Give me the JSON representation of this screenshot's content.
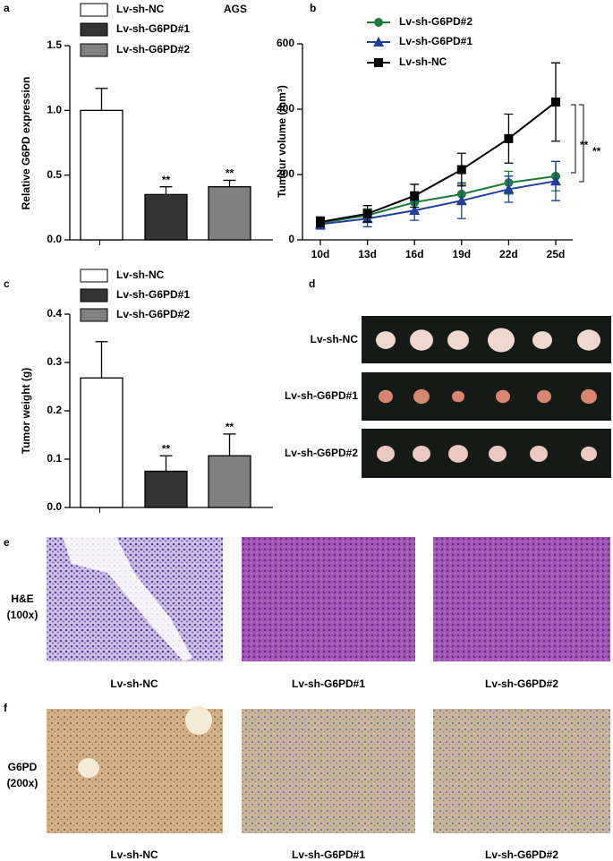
{
  "chart_data": [
    {
      "type": "bar",
      "panel": "a",
      "ylabel": "Relative G6PD expression",
      "note": "AGS",
      "categories": [
        null
      ],
      "ylim": [
        0,
        1.5
      ],
      "yticks": [
        {
          "value": 0,
          "label": "0.0"
        },
        0.5,
        {
          "value": 1,
          "label": "1.0"
        },
        1.5
      ],
      "series": [
        {
          "name": "Lv-sh-NC",
          "color": "#ffffff",
          "values": [
            1.0
          ],
          "errors": [
            0.17
          ]
        },
        {
          "name": "Lv-sh-G6PD#1",
          "color": "#333333",
          "values": [
            0.35
          ],
          "errors": [
            0.06
          ],
          "annotations": [
            "**"
          ]
        },
        {
          "name": "Lv-sh-G6PD#2",
          "color": "#808080",
          "values": [
            0.41
          ],
          "errors": [
            0.05
          ],
          "annotations": [
            "**"
          ]
        }
      ]
    },
    {
      "type": "line",
      "panel": "b",
      "ylabel": "Tumour volume (mm³)",
      "categories": [
        "10d",
        "13d",
        "16d",
        "19d",
        "22d",
        "25d"
      ],
      "ylim": [
        0,
        600
      ],
      "yticks": [
        0,
        200,
        400,
        600
      ],
      "annotations": [
        "**",
        "**"
      ],
      "series": [
        {
          "name": "Lv-sh-G6PD#2",
          "color": "#1e7a3c",
          "marker": "circle",
          "values": [
            52,
            75,
            115,
            140,
            175,
            195
          ],
          "errors": [
            10,
            20,
            30,
            30,
            35,
            45
          ]
        },
        {
          "name": "Lv-sh-G6PD#1",
          "color": "#1f3f9a",
          "marker": "triangle",
          "values": [
            48,
            65,
            90,
            120,
            155,
            180
          ],
          "errors": [
            15,
            25,
            30,
            55,
            40,
            60
          ]
        },
        {
          "name": "Lv-sh-NC",
          "color": "#000000",
          "marker": "square",
          "values": [
            55,
            80,
            135,
            215,
            310,
            422
          ],
          "errors": [
            15,
            25,
            35,
            50,
            75,
            120
          ]
        }
      ]
    },
    {
      "type": "bar",
      "panel": "c",
      "ylabel": "Tumor weight (g)",
      "categories": [
        null
      ],
      "ylim": [
        0,
        0.4
      ],
      "yticks": [
        {
          "value": 0,
          "label": "0.0"
        },
        0.1,
        0.2,
        0.3,
        0.4
      ],
      "series": [
        {
          "name": "Lv-sh-NC",
          "color": "#ffffff",
          "values": [
            0.268
          ],
          "errors": [
            0.075
          ]
        },
        {
          "name": "Lv-sh-G6PD#1",
          "color": "#333333",
          "values": [
            0.075
          ],
          "errors": [
            0.032
          ],
          "annotations": [
            "**"
          ]
        },
        {
          "name": "Lv-sh-G6PD#2",
          "color": "#808080",
          "values": [
            0.107
          ],
          "errors": [
            0.045
          ],
          "annotations": [
            "**"
          ]
        }
      ]
    }
  ],
  "photos": {
    "d": {
      "panel": "d",
      "rows": [
        "Lv-sh-NC",
        "Lv-sh-G6PD#1",
        "Lv-sh-G6PD#2"
      ]
    },
    "e": {
      "panel": "e",
      "stain": "H&E",
      "magnification": "(100x)",
      "captions": [
        "Lv-sh-NC",
        "Lv-sh-G6PD#1",
        "Lv-sh-G6PD#2"
      ]
    },
    "f": {
      "panel": "f",
      "stain": "G6PD",
      "magnification": "(200x)",
      "captions": [
        "Lv-sh-NC",
        "Lv-sh-G6PD#1",
        "Lv-sh-G6PD#2"
      ]
    }
  }
}
